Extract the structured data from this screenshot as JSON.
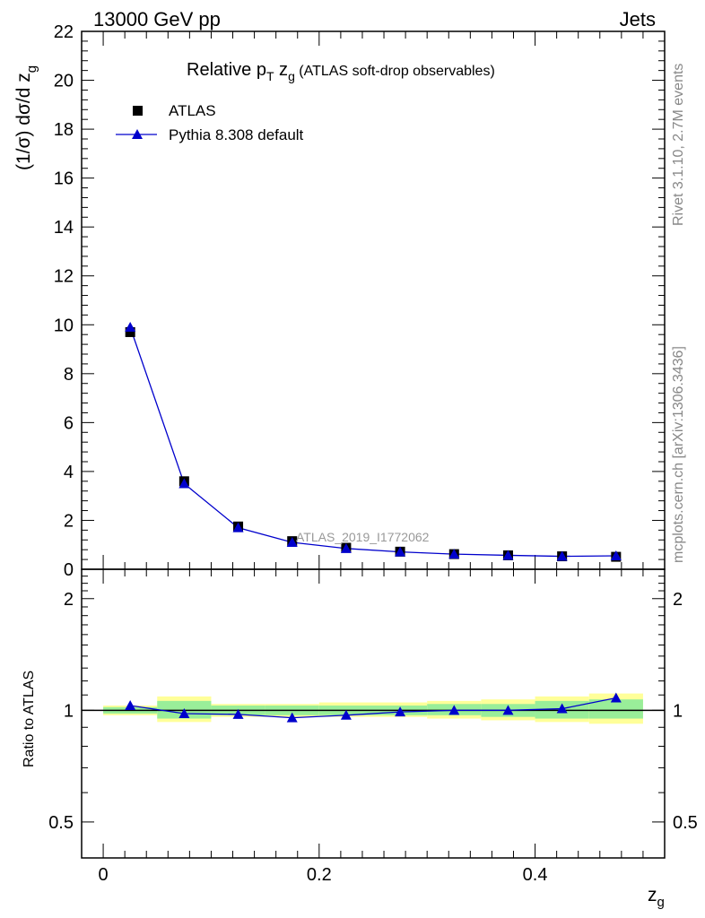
{
  "header": {
    "left": "13000 GeV pp",
    "right": "Jets"
  },
  "side": {
    "top": "Rivet 3.1.10,  2.7M events",
    "bottom": "mcplots.cern.ch [arXiv:1306.3436]"
  },
  "chart_data": {
    "type": "scatter",
    "title": "Relative p_T z_g (ATLAS soft-drop observables)",
    "title_main": "Relative p",
    "title_sub": "T",
    "title_z": " z",
    "title_zsub": "g",
    "title_rest": " (ATLAS soft-drop observables)",
    "ylabel": "(1/σ) dσ/d z",
    "ylabel_sub": "g",
    "xlabel": "z",
    "xlabel_sub": "g",
    "ratio_ylabel": "Ratio to ATLAS",
    "analysis_label": "ATLAS_2019_I1772062",
    "xlim": [
      -0.02,
      0.52
    ],
    "ylim": [
      0,
      22
    ],
    "ratio_ylim": [
      0.4,
      2.4
    ],
    "x_ticks": [
      "0",
      "0.2",
      "0.4"
    ],
    "x_tick_values": [
      0,
      0.2,
      0.4
    ],
    "y_ticks": [
      "0",
      "2",
      "4",
      "6",
      "8",
      "10",
      "12",
      "14",
      "16",
      "18",
      "20",
      "22"
    ],
    "y_tick_values": [
      0,
      2,
      4,
      6,
      8,
      10,
      12,
      14,
      16,
      18,
      20,
      22
    ],
    "ratio_ticks": [
      "0.5",
      "1",
      "2"
    ],
    "ratio_tick_values": [
      0.5,
      1,
      2
    ],
    "legend_position": "top-left",
    "x": [
      0.025,
      0.075,
      0.125,
      0.175,
      0.225,
      0.275,
      0.325,
      0.375,
      0.425,
      0.475
    ],
    "series": [
      {
        "name": "ATLAS",
        "values": [
          9.7,
          3.6,
          1.75,
          1.15,
          0.88,
          0.72,
          0.62,
          0.57,
          0.53,
          0.51
        ],
        "color": "#000000",
        "marker": "square"
      },
      {
        "name": "Pythia 8.308 default",
        "values": [
          9.9,
          3.5,
          1.7,
          1.1,
          0.85,
          0.71,
          0.62,
          0.57,
          0.53,
          0.55
        ],
        "color": "#0000cc",
        "marker": "triangle"
      }
    ],
    "ratio": {
      "values": [
        1.03,
        0.98,
        0.975,
        0.955,
        0.97,
        0.99,
        1.0,
        1.0,
        1.01,
        1.08
      ],
      "band_edges": [
        0.0,
        0.05,
        0.1,
        0.15,
        0.2,
        0.25,
        0.3,
        0.35,
        0.4,
        0.45,
        0.5
      ],
      "stat_band": [
        [
          0.98,
          1.02
        ],
        [
          0.95,
          1.06
        ],
        [
          0.97,
          1.03
        ],
        [
          0.97,
          1.03
        ],
        [
          0.97,
          1.03
        ],
        [
          0.97,
          1.03
        ],
        [
          0.97,
          1.04
        ],
        [
          0.96,
          1.04
        ],
        [
          0.95,
          1.06
        ],
        [
          0.95,
          1.07
        ]
      ],
      "syst_band": [
        [
          0.97,
          1.03
        ],
        [
          0.93,
          1.09
        ],
        [
          0.96,
          1.04
        ],
        [
          0.96,
          1.04
        ],
        [
          0.96,
          1.05
        ],
        [
          0.96,
          1.05
        ],
        [
          0.95,
          1.06
        ],
        [
          0.94,
          1.07
        ],
        [
          0.93,
          1.09
        ],
        [
          0.92,
          1.11
        ]
      ],
      "stat_color": "#99ee99",
      "syst_color": "#ffff99"
    }
  }
}
